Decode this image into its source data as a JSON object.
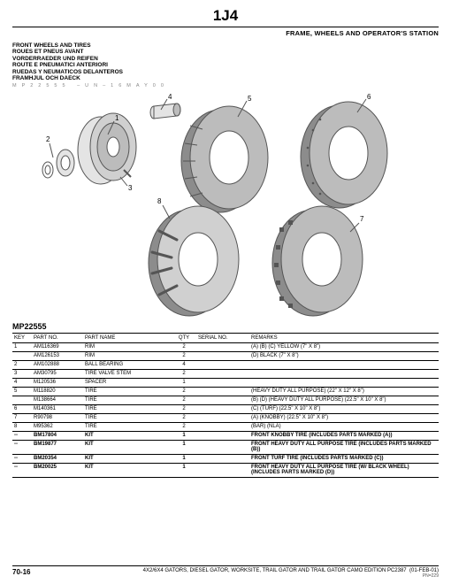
{
  "page_code": "1J4",
  "section_title": "FRAME, WHEELS AND OPERATOR'S STATION",
  "titles": [
    "FRONT WHEELS AND TIRES",
    "ROUES ET PNEUS AVANT",
    "VORDERRAEDER UND REIFEN",
    "ROUTE E PNEUMATICI ANTERIORI",
    "RUEDAS Y NEUMATICOS DELANTEROS",
    "FRAMHJUL OCH DAECK"
  ],
  "meta": "MP22555 –UN–16MAY00",
  "diagram": {
    "callouts": [
      "1",
      "2",
      "3",
      "4",
      "5",
      "6",
      "7",
      "8"
    ],
    "colors": {
      "stroke": "#555",
      "fill_light": "#e4e4e4",
      "fill_mid": "#bcbcbc",
      "fill_dark": "#8c8c8c"
    }
  },
  "table_caption": "MP22555",
  "headers": {
    "key": "KEY",
    "partno": "PART NO.",
    "partname": "PART NAME",
    "qty": "QTY",
    "serial": "SERIAL NO.",
    "remarks": "REMARKS"
  },
  "rows": [
    {
      "key": "1",
      "partno": "AM116369",
      "name": "RIM",
      "qty": "2",
      "remarks": "(A) (B) (C) YELLOW (7\" X 8\")",
      "bold": false
    },
    {
      "key": "",
      "partno": "AM126153",
      "name": "RIM",
      "qty": "2",
      "remarks": "(D) BLACK (7\" X 8\")",
      "bold": false
    },
    {
      "key": "2",
      "partno": "AM102888",
      "name": "BALL BEARING",
      "qty": "4",
      "remarks": "",
      "bold": false
    },
    {
      "key": "3",
      "partno": "AM30795",
      "name": "TIRE VALVE STEM",
      "qty": "2",
      "remarks": "",
      "bold": false
    },
    {
      "key": "4",
      "partno": "M120536",
      "name": "SPACER",
      "qty": "1",
      "remarks": "",
      "bold": false
    },
    {
      "key": "5",
      "partno": "M118820",
      "name": "TIRE",
      "qty": "2",
      "remarks": "(HEAVY DUTY ALL PURPOSE) (22\" X 12\" X 8\")",
      "bold": false
    },
    {
      "key": "",
      "partno": "M138664",
      "name": "TIRE",
      "qty": "2",
      "remarks": "(B) (D) (HEAVY DUTY ALL PURPOSE) (22.5\" X 10\" X 8\")",
      "bold": false
    },
    {
      "key": "6",
      "partno": "M140361",
      "name": "TIRE",
      "qty": "2",
      "remarks": "(C) (TURF) (22.5\" X 10\" X 8\")",
      "bold": false
    },
    {
      "key": "7",
      "partno": "R90798",
      "name": "TIRE",
      "qty": "2",
      "remarks": "(A) (KNOBBY) (22.5\" X 10\" X 8\")",
      "bold": false
    },
    {
      "key": "8",
      "partno": "M95362",
      "name": "TIRE",
      "qty": "2",
      "remarks": "(BAR) (NLA)",
      "bold": false
    },
    {
      "key": "--",
      "partno": "BM17804",
      "name": "KIT",
      "qty": "1",
      "remarks": "FRONT KNOBBY TIRE (INCLUDES PARTS MARKED (A))",
      "bold": true
    },
    {
      "key": "--",
      "partno": "BM19877",
      "name": "KIT",
      "qty": "1",
      "remarks": "FRONT HEAVY DUTY ALL PURPOSE TIRE (INCLUDES PARTS MARKED (B))",
      "bold": true
    },
    {
      "key": "--",
      "partno": "BM20354",
      "name": "KIT",
      "qty": "1",
      "remarks": "FRONT TURF TIRE (INCLUDES PARTS MARKED (C))",
      "bold": true
    },
    {
      "key": "--",
      "partno": "BM20025",
      "name": "KIT",
      "qty": "1",
      "remarks": "FRONT HEAVY DUTY ALL PURPOSE TIRE (W/ BLACK WHEEL) (INCLUDES PARTS MARKED (D))",
      "bold": true
    }
  ],
  "footer": {
    "page": "70-16",
    "desc": "4X2/6X4 GATORS, DIESEL GATOR, WORKSITE, TRAIL GATOR AND TRAIL GATOR CAMO EDITION   PC2387",
    "date": "(01-FEB-01)",
    "pn": "PN=229"
  }
}
